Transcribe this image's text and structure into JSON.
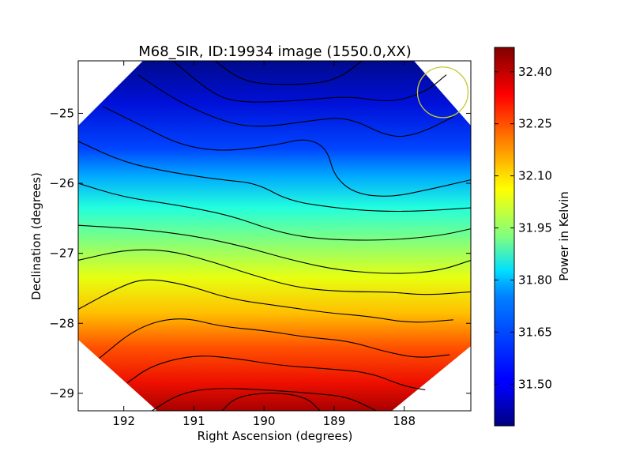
{
  "chart_data": {
    "type": "heatmap",
    "title": "M68_SIR, ID:19934 image (1550.0,XX)",
    "xlabel": "Right Ascension (degrees)",
    "ylabel": "Declination (degrees)",
    "colorbar_label": "Power in Kelvin",
    "colormap": "jet",
    "x_inverted": true,
    "xlim": [
      192.65,
      187.05
    ],
    "ylim": [
      -29.25,
      -24.25
    ],
    "x_ticks": [
      192,
      191,
      190,
      189,
      188
    ],
    "x_tick_labels": [
      "192",
      "191",
      "190",
      "189",
      "188"
    ],
    "y_ticks": [
      -25,
      -26,
      -27,
      -28,
      -29
    ],
    "y_tick_labels": [
      "−25",
      "−26",
      "−27",
      "−28",
      "−29"
    ],
    "color_range": [
      31.38,
      32.47
    ],
    "colorbar_ticks": [
      32.4,
      32.25,
      32.1,
      31.95,
      31.8,
      31.65,
      31.5
    ],
    "colorbar_tick_labels": [
      "32.40",
      "32.25",
      "32.10",
      "31.95",
      "31.80",
      "31.65",
      "31.50"
    ],
    "beam_circle": {
      "ra": 187.45,
      "dec": -24.7,
      "color": "#c8c832"
    },
    "contours": [
      {
        "points": [
          [
            190.7,
            -24.25
          ],
          [
            190.3,
            -24.55
          ],
          [
            189.7,
            -24.6
          ],
          [
            189.0,
            -24.55
          ],
          [
            188.6,
            -24.25
          ]
        ]
      },
      {
        "points": [
          [
            191.3,
            -24.25
          ],
          [
            190.7,
            -24.75
          ],
          [
            190.3,
            -24.85
          ],
          [
            189.5,
            -24.82
          ],
          [
            188.8,
            -24.75
          ],
          [
            188.2,
            -24.85
          ],
          [
            187.7,
            -24.7
          ],
          [
            187.4,
            -24.45
          ]
        ]
      },
      {
        "points": [
          [
            191.8,
            -24.45
          ],
          [
            191.2,
            -24.85
          ],
          [
            190.5,
            -25.15
          ],
          [
            190.0,
            -25.2
          ],
          [
            189.3,
            -25.1
          ],
          [
            188.8,
            -25.05
          ],
          [
            188.2,
            -25.35
          ],
          [
            187.8,
            -25.3
          ],
          [
            187.3,
            -25.05
          ]
        ]
      },
      {
        "points": [
          [
            192.3,
            -24.9
          ],
          [
            191.7,
            -25.2
          ],
          [
            191.2,
            -25.45
          ],
          [
            190.6,
            -25.55
          ],
          [
            189.8,
            -25.45
          ],
          [
            189.4,
            -25.35
          ],
          [
            189.1,
            -25.5
          ],
          [
            189.0,
            -25.9
          ],
          [
            188.7,
            -26.15
          ],
          [
            188.2,
            -26.2
          ],
          [
            187.7,
            -26.1
          ],
          [
            187.05,
            -25.95
          ]
        ]
      },
      {
        "points": [
          [
            192.65,
            -25.4
          ],
          [
            192.0,
            -25.7
          ],
          [
            191.3,
            -25.85
          ],
          [
            190.6,
            -25.95
          ],
          [
            190.1,
            -26.0
          ],
          [
            189.65,
            -26.25
          ],
          [
            189.0,
            -26.35
          ],
          [
            188.4,
            -26.4
          ],
          [
            187.8,
            -26.4
          ],
          [
            187.05,
            -26.35
          ]
        ]
      },
      {
        "points": [
          [
            192.65,
            -26.0
          ],
          [
            192.0,
            -26.2
          ],
          [
            191.3,
            -26.3
          ],
          [
            190.5,
            -26.45
          ],
          [
            189.8,
            -26.7
          ],
          [
            189.2,
            -26.8
          ],
          [
            188.3,
            -26.82
          ],
          [
            187.5,
            -26.75
          ],
          [
            187.05,
            -26.65
          ]
        ]
      },
      {
        "points": [
          [
            192.65,
            -26.6
          ],
          [
            191.8,
            -26.65
          ],
          [
            191.0,
            -26.75
          ],
          [
            190.3,
            -26.9
          ],
          [
            189.6,
            -27.1
          ],
          [
            188.9,
            -27.25
          ],
          [
            188.1,
            -27.3
          ],
          [
            187.5,
            -27.25
          ],
          [
            187.05,
            -27.1
          ]
        ]
      },
      {
        "points": [
          [
            192.65,
            -27.1
          ],
          [
            192.0,
            -26.95
          ],
          [
            191.4,
            -26.95
          ],
          [
            190.8,
            -27.1
          ],
          [
            190.2,
            -27.3
          ],
          [
            189.5,
            -27.5
          ],
          [
            188.8,
            -27.55
          ],
          [
            188.2,
            -27.55
          ],
          [
            187.7,
            -27.6
          ],
          [
            187.05,
            -27.55
          ]
        ]
      },
      {
        "points": [
          [
            192.65,
            -27.8
          ],
          [
            192.1,
            -27.5
          ],
          [
            191.7,
            -27.35
          ],
          [
            191.1,
            -27.45
          ],
          [
            190.5,
            -27.65
          ],
          [
            189.8,
            -27.75
          ],
          [
            189.1,
            -27.85
          ],
          [
            188.5,
            -27.9
          ],
          [
            187.9,
            -28.0
          ],
          [
            187.3,
            -27.95
          ]
        ]
      },
      {
        "points": [
          [
            192.35,
            -28.5
          ],
          [
            191.8,
            -28.05
          ],
          [
            191.2,
            -27.9
          ],
          [
            190.6,
            -28.05
          ],
          [
            190.0,
            -28.1
          ],
          [
            189.4,
            -28.2
          ],
          [
            188.8,
            -28.25
          ],
          [
            188.3,
            -28.4
          ],
          [
            187.8,
            -28.5
          ],
          [
            187.35,
            -28.45
          ]
        ]
      },
      {
        "points": [
          [
            191.95,
            -28.85
          ],
          [
            191.6,
            -28.6
          ],
          [
            191.0,
            -28.45
          ],
          [
            190.4,
            -28.5
          ],
          [
            189.8,
            -28.6
          ],
          [
            189.1,
            -28.65
          ],
          [
            188.5,
            -28.7
          ],
          [
            188.0,
            -28.9
          ],
          [
            187.7,
            -28.95
          ]
        ]
      },
      {
        "points": [
          [
            191.6,
            -29.25
          ],
          [
            191.2,
            -29.0
          ],
          [
            190.7,
            -28.92
          ],
          [
            190.0,
            -28.95
          ],
          [
            189.3,
            -29.0
          ],
          [
            188.8,
            -29.05
          ],
          [
            188.4,
            -29.25
          ]
        ]
      },
      {
        "points": [
          [
            190.6,
            -29.25
          ],
          [
            190.4,
            -29.05
          ],
          [
            189.9,
            -28.98
          ],
          [
            189.4,
            -29.05
          ],
          [
            189.2,
            -29.25
          ]
        ]
      }
    ]
  }
}
